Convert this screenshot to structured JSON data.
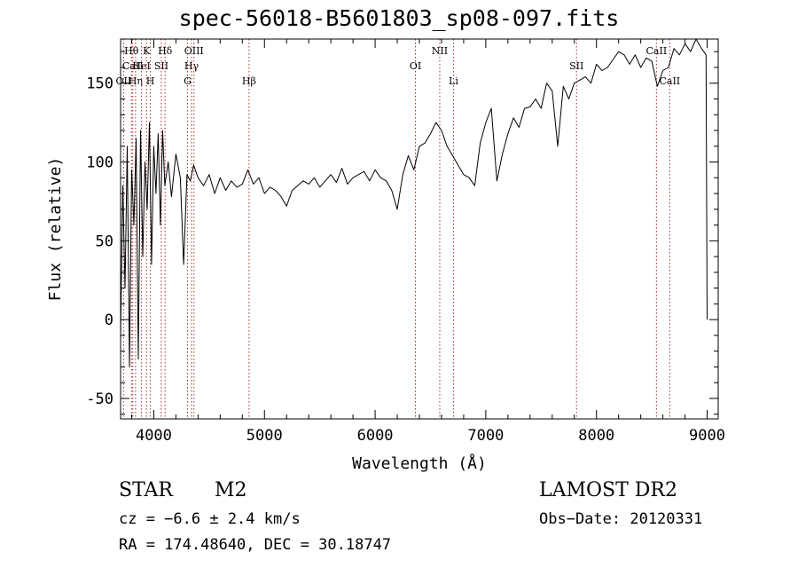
{
  "chart_data": {
    "type": "line",
    "title": "spec-56018-B5601803_sp08-097.fits",
    "xlabel": "Wavelength (Å)",
    "ylabel": "Flux (relative)",
    "xlim": [
      3700,
      9100
    ],
    "ylim": [
      -63,
      178
    ],
    "xticks": [
      4000,
      5000,
      6000,
      7000,
      8000,
      9000
    ],
    "yticks": [
      -50,
      0,
      50,
      100,
      150
    ],
    "grid": false,
    "line_color": "#000000",
    "marker_color": "#a0302a",
    "series": [
      {
        "x": [
          3700,
          3720,
          3740,
          3760,
          3780,
          3800,
          3820,
          3840,
          3860,
          3880,
          3900,
          3920,
          3940,
          3960,
          3980,
          4000,
          4020,
          4040,
          4060,
          4080,
          4100,
          4130,
          4160,
          4200,
          4240,
          4270,
          4300,
          4330,
          4360,
          4400,
          4450,
          4500,
          4550,
          4600,
          4650,
          4700,
          4750,
          4800,
          4850,
          4900,
          4950,
          5000,
          5050,
          5100,
          5150,
          5200,
          5250,
          5300,
          5350,
          5400,
          5450,
          5500,
          5550,
          5600,
          5650,
          5700,
          5750,
          5800,
          5850,
          5900,
          5950,
          6000,
          6050,
          6100,
          6150,
          6200,
          6250,
          6300,
          6350,
          6400,
          6450,
          6500,
          6550,
          6600,
          6650,
          6700,
          6750,
          6800,
          6850,
          6900,
          6950,
          7000,
          7050,
          7100,
          7150,
          7200,
          7250,
          7300,
          7350,
          7400,
          7450,
          7500,
          7550,
          7600,
          7650,
          7700,
          7750,
          7800,
          7850,
          7900,
          7950,
          8000,
          8050,
          8100,
          8150,
          8200,
          8250,
          8300,
          8350,
          8400,
          8450,
          8500,
          8550,
          8600,
          8650,
          8700,
          8750,
          8800,
          8850,
          8900,
          8950,
          8990,
          9000
        ],
        "y": [
          -10,
          85,
          20,
          110,
          -30,
          95,
          60,
          115,
          -25,
          120,
          40,
          100,
          70,
          125,
          35,
          110,
          80,
          118,
          60,
          120,
          85,
          100,
          78,
          105,
          90,
          35,
          92,
          88,
          98,
          90,
          85,
          92,
          80,
          90,
          82,
          88,
          84,
          86,
          95,
          86,
          90,
          80,
          84,
          82,
          78,
          72,
          82,
          85,
          88,
          86,
          90,
          84,
          88,
          92,
          87,
          96,
          86,
          90,
          92,
          94,
          88,
          95,
          90,
          88,
          82,
          70,
          92,
          104,
          95,
          110,
          112,
          118,
          125,
          120,
          110,
          104,
          98,
          92,
          90,
          85,
          112,
          125,
          134,
          88,
          105,
          118,
          128,
          122,
          134,
          135,
          140,
          134,
          150,
          145,
          110,
          148,
          140,
          150,
          152,
          154,
          150,
          162,
          158,
          160,
          165,
          170,
          168,
          162,
          168,
          160,
          166,
          164,
          148,
          158,
          160,
          172,
          168,
          175,
          170,
          178,
          172,
          168,
          0
        ]
      }
    ],
    "markers": [
      {
        "label": "OII",
        "x": 3727,
        "row": 3
      },
      {
        "label": "Hθ",
        "x": 3798,
        "row": 1
      },
      {
        "label": "CaII",
        "x": 3810,
        "row": 2
      },
      {
        "label": "Hη",
        "x": 3835,
        "row": 3
      },
      {
        "label": "HeI",
        "x": 3889,
        "row": 2
      },
      {
        "label": "K",
        "x": 3934,
        "row": 1
      },
      {
        "label": "H",
        "x": 3969,
        "row": 3
      },
      {
        "label": "SII",
        "x": 4068,
        "row": 2
      },
      {
        "label": "Hδ",
        "x": 4102,
        "row": 1
      },
      {
        "label": "G",
        "x": 4305,
        "row": 3
      },
      {
        "label": "Hγ",
        "x": 4341,
        "row": 2
      },
      {
        "label": "OIII",
        "x": 4363,
        "row": 1
      },
      {
        "label": "Hβ",
        "x": 4861,
        "row": 3
      },
      {
        "label": "OI",
        "x": 6364,
        "row": 2
      },
      {
        "label": "NII",
        "x": 6584,
        "row": 1
      },
      {
        "label": "Li",
        "x": 6708,
        "row": 3
      },
      {
        "label": "SII",
        "x": 7820,
        "row": 2
      },
      {
        "label": "CaII",
        "x": 8542,
        "row": 1
      },
      {
        "label": "CaII",
        "x": 8662,
        "row": 3
      }
    ]
  },
  "info": {
    "class": "STAR",
    "subclass": "M2",
    "survey": "LAMOST DR2",
    "cz": "cz = −6.6 ± 2.4 km/s",
    "obs_date": "Obs−Date: 20120331",
    "radec": "RA = 174.48640, DEC =  30.18747"
  }
}
